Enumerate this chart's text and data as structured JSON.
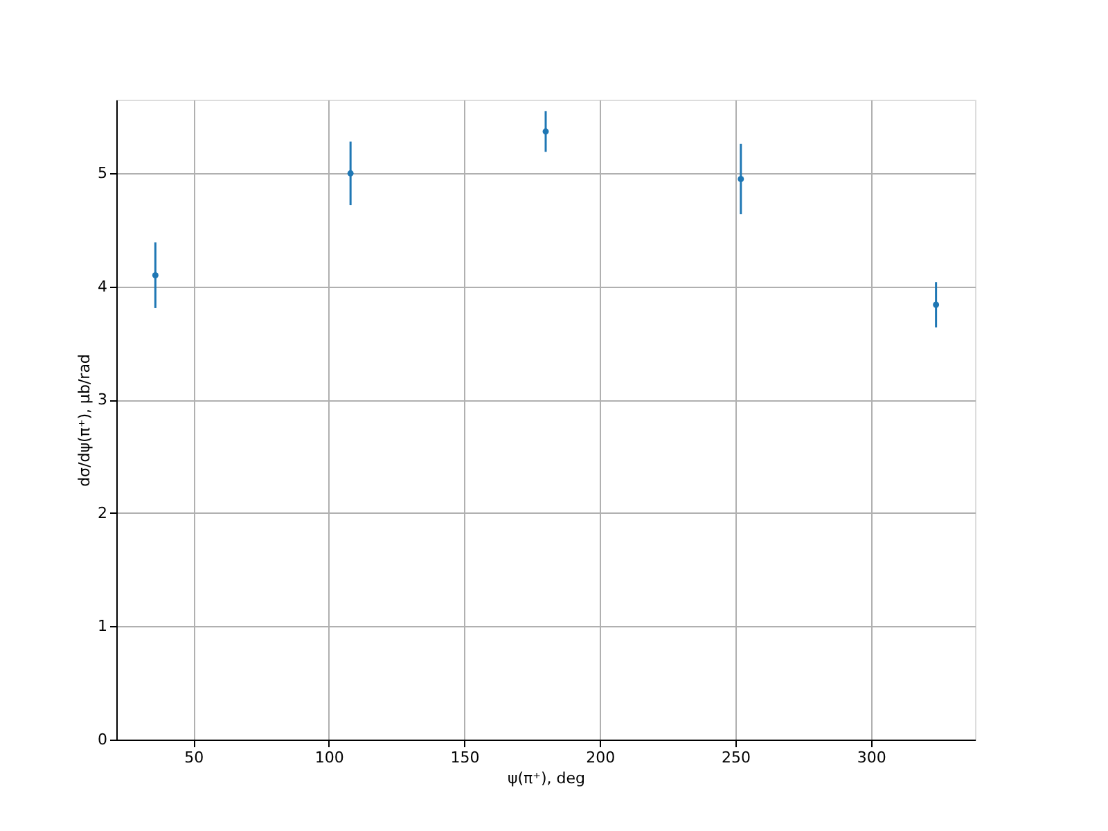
{
  "chart_data": {
    "type": "scatter",
    "xlabel": "ψ(π⁺), deg",
    "ylabel": "dσ/dψ(π⁺), μb/rad",
    "x": [
      36,
      108,
      180,
      252,
      324
    ],
    "series": [
      {
        "color": "#1f77b4",
        "values": [
          4.1,
          5.0,
          5.37,
          4.95,
          3.84
        ],
        "errors": [
          0.29,
          0.28,
          0.18,
          0.31,
          0.2
        ]
      }
    ],
    "xlim": [
      21.6,
      338.4
    ],
    "xticks": [
      50,
      100,
      150,
      200,
      250,
      300
    ],
    "ylim": [
      0,
      5.65
    ],
    "yticks": [
      0,
      1,
      2,
      3,
      4,
      5
    ],
    "grid": true,
    "marker": "circle"
  }
}
